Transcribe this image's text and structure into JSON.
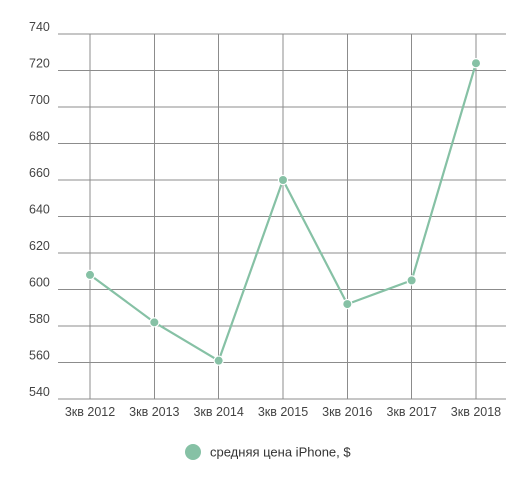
{
  "chart_data": {
    "type": "line",
    "title": "",
    "xlabel": "",
    "ylabel": "",
    "categories": [
      "3кв 2012",
      "3кв 2013",
      "3кв 2014",
      "3кв 2015",
      "3кв 2016",
      "3кв 2017",
      "3кв 2018"
    ],
    "series": [
      {
        "name": "средняя цена iPhone, $",
        "values": [
          608,
          582,
          561,
          660,
          592,
          605,
          724
        ],
        "color": "#86c1a5"
      }
    ],
    "ylim": [
      540,
      740
    ],
    "yticks": [
      540,
      560,
      580,
      600,
      620,
      640,
      660,
      680,
      700,
      720,
      740
    ],
    "grid": true,
    "legend_position": "bottom-center"
  }
}
